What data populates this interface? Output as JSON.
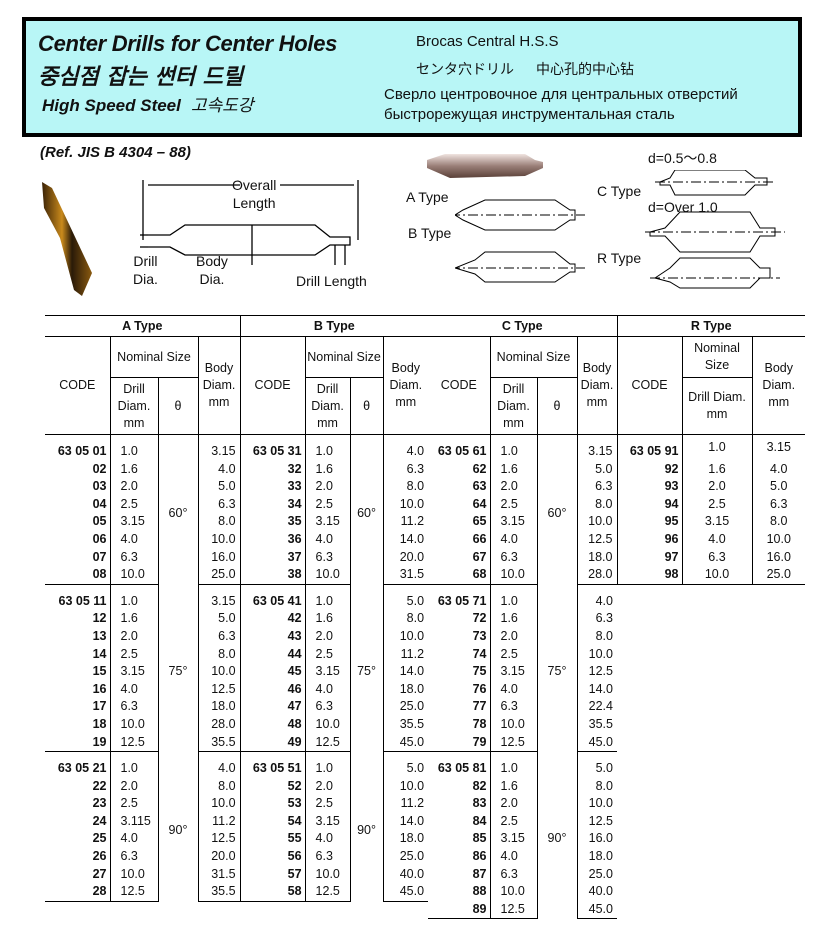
{
  "banner": {
    "title_en": "Center Drills for Center Holes",
    "title_ko": "중심점 잡는 썬터 드릴",
    "material_en": "High Speed Steel",
    "material_ko": "고속도강",
    "title_es": "Brocas Central H.S.S",
    "title_ja": "センタ穴ドリル",
    "title_zh": "中心孔的中心钻",
    "title_ru_1": "Сверло центровочное для центральных отверстий",
    "title_ru_2": "быстрорежущая инструментальная сталь",
    "background_color": "#b8f6f6"
  },
  "reference": "(Ref. JIS B 4304 – 88)",
  "diagram": {
    "overall_length": "Overall\nLength",
    "drill_dia": "Drill\nDia.",
    "body_dia": "Body\nDia.",
    "drill_length": "Drill Length",
    "a_type": "A Type",
    "b_type": "B Type",
    "c_type": "C Type",
    "r_type": "R Type",
    "c_note_1": "d=0.5～0.8",
    "c_note_2": "d=Over  1.0"
  },
  "headers": {
    "code": "CODE",
    "nominal": "Nominal Size",
    "drill": "Drill Diam. mm",
    "theta": "θ",
    "body": "Body Diam. mm"
  },
  "blocks": [
    {
      "types": [
        {
          "name": "A Type",
          "groups": [
            {
              "angle": "60°",
              "rows": [
                [
                  "63 05 01",
                  "1.0",
                  "3.15"
                ],
                [
                  "02",
                  "1.6",
                  "4.0"
                ],
                [
                  "03",
                  "2.0",
                  "5.0"
                ],
                [
                  "04",
                  "2.5",
                  "6.3"
                ],
                [
                  "05",
                  "3.15",
                  "8.0"
                ],
                [
                  "06",
                  "4.0",
                  "10.0"
                ],
                [
                  "07",
                  "6.3",
                  "16.0"
                ],
                [
                  "08",
                  "10.0",
                  "25.0"
                ]
              ]
            },
            {
              "angle": "75°",
              "rows": [
                [
                  "63 05 11",
                  "1.0",
                  "3.15"
                ],
                [
                  "12",
                  "1.6",
                  "5.0"
                ],
                [
                  "13",
                  "2.0",
                  "6.3"
                ],
                [
                  "14",
                  "2.5",
                  "8.0"
                ],
                [
                  "15",
                  "3.15",
                  "10.0"
                ],
                [
                  "16",
                  "4.0",
                  "12.5"
                ],
                [
                  "17",
                  "6.3",
                  "18.0"
                ],
                [
                  "18",
                  "10.0",
                  "28.0"
                ],
                [
                  "19",
                  "12.5",
                  "35.5"
                ]
              ]
            },
            {
              "angle": "90°",
              "rows": [
                [
                  "63 05 21",
                  "1.0",
                  "4.0"
                ],
                [
                  "22",
                  "2.0",
                  "8.0"
                ],
                [
                  "23",
                  "2.5",
                  "10.0"
                ],
                [
                  "24",
                  "3.115",
                  "11.2"
                ],
                [
                  "25",
                  "4.0",
                  "12.5"
                ],
                [
                  "26",
                  "6.3",
                  "20.0"
                ],
                [
                  "27",
                  "10.0",
                  "31.5"
                ],
                [
                  "28",
                  "12.5",
                  "35.5"
                ]
              ]
            }
          ]
        },
        {
          "name": "B Type",
          "groups": [
            {
              "angle": "60°",
              "rows": [
                [
                  "63 05 31",
                  "1.0",
                  "4.0"
                ],
                [
                  "32",
                  "1.6",
                  "6.3"
                ],
                [
                  "33",
                  "2.0",
                  "8.0"
                ],
                [
                  "34",
                  "2.5",
                  "10.0"
                ],
                [
                  "35",
                  "3.15",
                  "11.2"
                ],
                [
                  "36",
                  "4.0",
                  "14.0"
                ],
                [
                  "37",
                  "6.3",
                  "20.0"
                ],
                [
                  "38",
                  "10.0",
                  "31.5"
                ]
              ]
            },
            {
              "angle": "75°",
              "rows": [
                [
                  "63 05 41",
                  "1.0",
                  "5.0"
                ],
                [
                  "42",
                  "1.6",
                  "8.0"
                ],
                [
                  "43",
                  "2.0",
                  "10.0"
                ],
                [
                  "44",
                  "2.5",
                  "11.2"
                ],
                [
                  "45",
                  "3.15",
                  "14.0"
                ],
                [
                  "46",
                  "4.0",
                  "18.0"
                ],
                [
                  "47",
                  "6.3",
                  "25.0"
                ],
                [
                  "48",
                  "10.0",
                  "35.5"
                ],
                [
                  "49",
                  "12.5",
                  "45.0"
                ]
              ]
            },
            {
              "angle": "90°",
              "rows": [
                [
                  "63 05 51",
                  "1.0",
                  "5.0"
                ],
                [
                  "52",
                  "2.0",
                  "10.0"
                ],
                [
                  "53",
                  "2.5",
                  "11.2"
                ],
                [
                  "54",
                  "3.15",
                  "14.0"
                ],
                [
                  "55",
                  "4.0",
                  "18.0"
                ],
                [
                  "56",
                  "6.3",
                  "25.0"
                ],
                [
                  "57",
                  "10.0",
                  "40.0"
                ],
                [
                  "58",
                  "12.5",
                  "45.0"
                ]
              ]
            }
          ]
        }
      ]
    },
    {
      "types": [
        {
          "name": "C Type",
          "groups": [
            {
              "angle": "60°",
              "rows": [
                [
                  "63 05 61",
                  "1.0",
                  "3.15"
                ],
                [
                  "62",
                  "1.6",
                  "5.0"
                ],
                [
                  "63",
                  "2.0",
                  "6.3"
                ],
                [
                  "64",
                  "2.5",
                  "8.0"
                ],
                [
                  "65",
                  "3.15",
                  "10.0"
                ],
                [
                  "66",
                  "4.0",
                  "12.5"
                ],
                [
                  "67",
                  "6.3",
                  "18.0"
                ],
                [
                  "68",
                  "10.0",
                  "28.0"
                ]
              ]
            },
            {
              "angle": "75°",
              "rows": [
                [
                  "63 05 71",
                  "1.0",
                  "4.0"
                ],
                [
                  "72",
                  "1.6",
                  "6.3"
                ],
                [
                  "73",
                  "2.0",
                  "8.0"
                ],
                [
                  "74",
                  "2.5",
                  "10.0"
                ],
                [
                  "75",
                  "3.15",
                  "12.5"
                ],
                [
                  "76",
                  "4.0",
                  "14.0"
                ],
                [
                  "77",
                  "6.3",
                  "22.4"
                ],
                [
                  "78",
                  "10.0",
                  "35.5"
                ],
                [
                  "79",
                  "12.5",
                  "45.0"
                ]
              ]
            },
            {
              "angle": "90°",
              "rows": [
                [
                  "63 05 81",
                  "1.0",
                  "5.0"
                ],
                [
                  "82",
                  "1.6",
                  "8.0"
                ],
                [
                  "83",
                  "2.0",
                  "10.0"
                ],
                [
                  "84",
                  "2.5",
                  "12.5"
                ],
                [
                  "85",
                  "3.15",
                  "16.0"
                ],
                [
                  "86",
                  "4.0",
                  "18.0"
                ],
                [
                  "87",
                  "6.3",
                  "25.0"
                ],
                [
                  "88",
                  "10.0",
                  "40.0"
                ],
                [
                  "89",
                  "12.5",
                  "45.0"
                ]
              ]
            }
          ]
        },
        {
          "name": "R Type",
          "groups": [
            {
              "rows": [
                [
                  "63 05 91",
                  "1.0",
                  "3.15"
                ],
                [
                  "92",
                  "1.6",
                  "4.0"
                ],
                [
                  "93",
                  "2.0",
                  "5.0"
                ],
                [
                  "94",
                  "2.5",
                  "6.3"
                ],
                [
                  "95",
                  "3.15",
                  "8.0"
                ],
                [
                  "96",
                  "4.0",
                  "10.0"
                ],
                [
                  "97",
                  "6.3",
                  "16.0"
                ],
                [
                  "98",
                  "10.0",
                  "25.0"
                ]
              ]
            }
          ]
        }
      ]
    }
  ]
}
